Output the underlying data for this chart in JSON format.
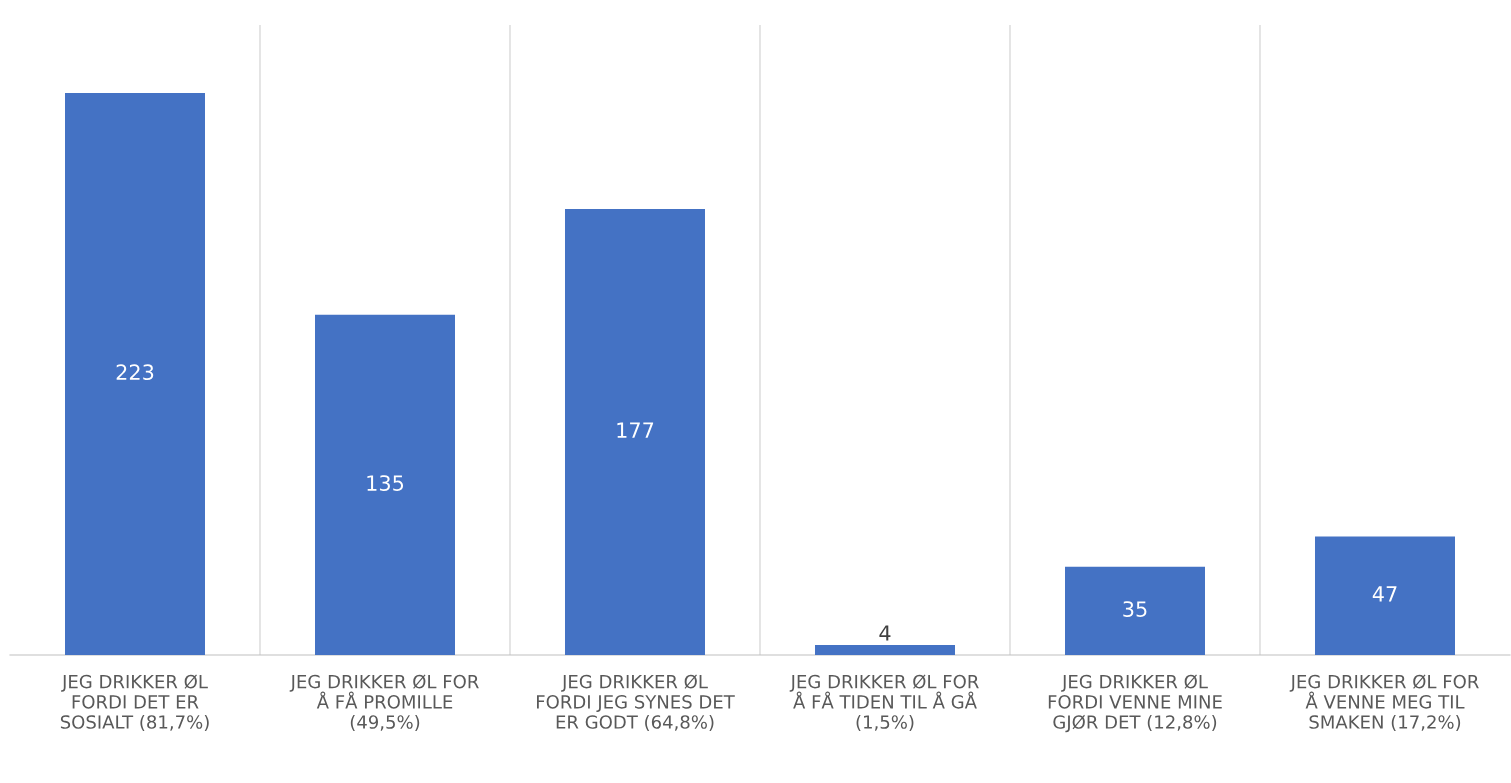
{
  "chart_data": {
    "type": "bar",
    "categories": [
      "JEG DRIKKER ØL\nFORDI DET ER\nSOSIALT (81,7%)",
      "JEG DRIKKER ØL FOR\nÅ FÅ PROMILLE\n(49,5%)",
      "JEG DRIKKER ØL\nFORDI JEG SYNES DET\nER GODT (64,8%)",
      "JEG DRIKKER ØL FOR\nÅ FÅ TIDEN TIL Å GÅ\n(1,5%)",
      "JEG DRIKKER ØL\nFORDI VENNE MINE\nGJØR DET (12,8%)",
      "JEG DRIKKER ØL FOR\nÅ VENNE MEG TIL\nSMAKEN (17,2%)"
    ],
    "values": [
      223,
      135,
      177,
      4,
      35,
      47
    ],
    "color": "#4472c4",
    "ylim": [
      0,
      250
    ],
    "data_labels": true,
    "grid": "x"
  }
}
